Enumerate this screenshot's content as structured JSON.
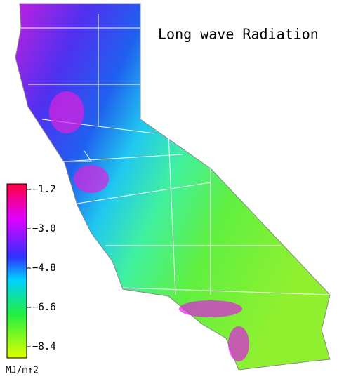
{
  "map": {
    "title": "Long wave Radiation",
    "colorbar": {
      "ticks": [
        {
          "value": -1.2,
          "label": "−1.2"
        },
        {
          "value": -3.0,
          "label": "−3.0"
        },
        {
          "value": -4.8,
          "label": "−4.8"
        },
        {
          "value": -6.6,
          "label": "−6.6"
        },
        {
          "value": -8.4,
          "label": "−8.4"
        }
      ],
      "unit": "MJ/m↑2"
    }
  }
}
